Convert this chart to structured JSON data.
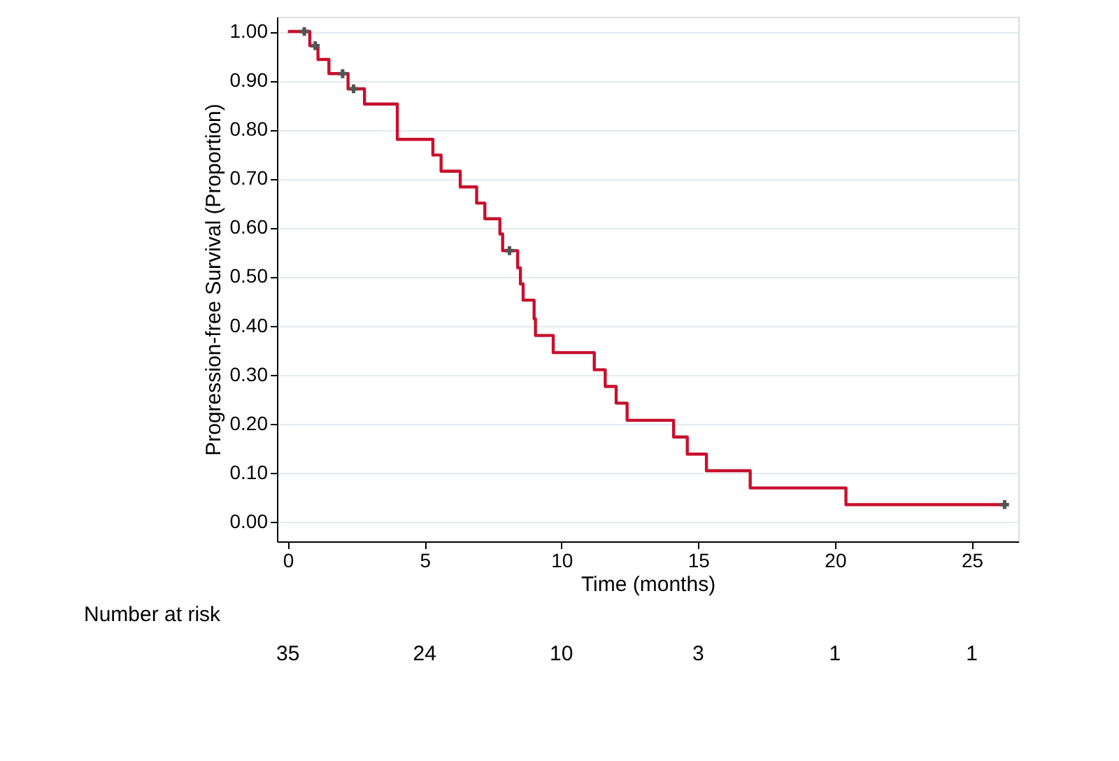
{
  "chart_data": {
    "type": "step",
    "xlabel": "Time (months)",
    "ylabel": "Progression-free Survival (Proportion)",
    "xlim": [
      -0.4,
      26.7
    ],
    "ylim": [
      -0.04,
      1.03
    ],
    "xticks": [
      0,
      5,
      10,
      15,
      20,
      25
    ],
    "yticks": [
      {
        "value": 0,
        "label": "0.00"
      },
      {
        "value": 0.1,
        "label": "0.10"
      },
      {
        "value": 0.2,
        "label": "0.20"
      },
      {
        "value": 0.3,
        "label": "0.30"
      },
      {
        "value": 0.4,
        "label": "0.40"
      },
      {
        "value": 0.5,
        "label": "0.50"
      },
      {
        "value": 0.6,
        "label": "0.60"
      },
      {
        "value": 0.7,
        "label": "0.70"
      },
      {
        "value": 0.8,
        "label": "0.80"
      },
      {
        "value": 0.9,
        "label": "0.90"
      },
      {
        "value": 1,
        "label": "1.00"
      }
    ],
    "grid": "y",
    "series": [
      {
        "color": "#c8102e",
        "line_style": "solid",
        "x": [
          0,
          0.8,
          1.1,
          1.5,
          2.2,
          2.8,
          4.0,
          5.3,
          5.6,
          6.3,
          6.9,
          7.2,
          7.75,
          7.85,
          8.4,
          8.5,
          8.6,
          9.0,
          9.05,
          9.7,
          11.2,
          11.6,
          12.0,
          12.4,
          14.1,
          14.6,
          15.3,
          16.9,
          20.4,
          26.2
        ],
        "values": [
          1.0,
          0.971,
          0.943,
          0.914,
          0.883,
          0.852,
          0.78,
          0.748,
          0.715,
          0.683,
          0.65,
          0.618,
          0.587,
          0.553,
          0.518,
          0.485,
          0.452,
          0.414,
          0.38,
          0.345,
          0.31,
          0.276,
          0.242,
          0.207,
          0.173,
          0.138,
          0.104,
          0.069,
          0.035,
          0.035
        ]
      },
      {
        "type": "scatter",
        "color": "#555555",
        "marker": "cross",
        "x": [
          0.6,
          1.0,
          2.0,
          2.4,
          8.1,
          26.2
        ],
        "values": [
          1.0,
          0.971,
          0.914,
          0.883,
          0.553,
          0.035
        ]
      }
    ],
    "annotations": [
      "Number at risk",
      "35",
      "24",
      "10",
      "3",
      "1",
      "1"
    ]
  }
}
